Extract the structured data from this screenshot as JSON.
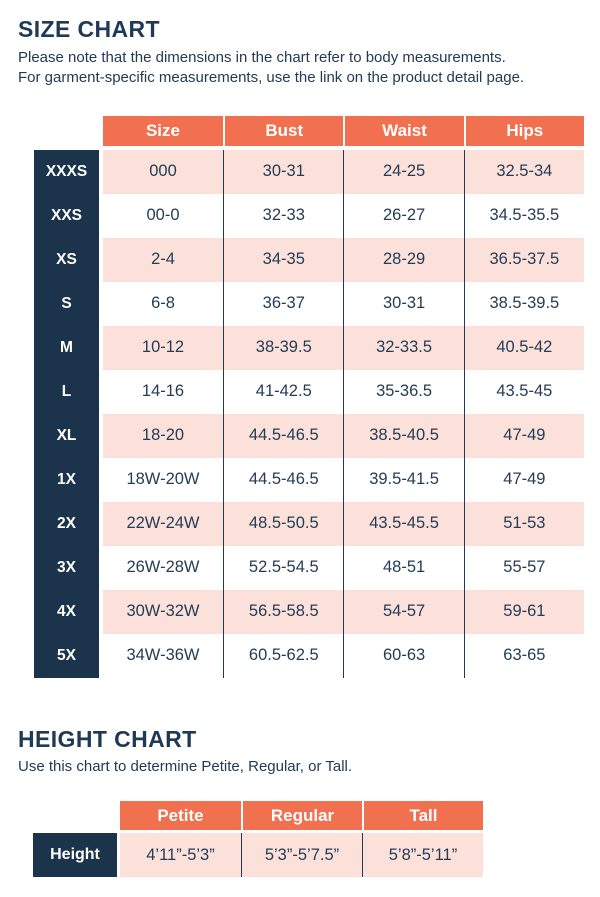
{
  "colors": {
    "navy": "#1b334b",
    "orange": "#f1704f",
    "pink": "#fbe1da",
    "text_navy": "#243c56",
    "background": "#ffffff"
  },
  "size_chart": {
    "title": "SIZE CHART",
    "description_line1": "Please note that the dimensions in the chart refer to body measurements.",
    "description_line2": "For garment-specific measurements, use the link on the product detail page.",
    "columns": [
      "Size",
      "Bust",
      "Waist",
      "Hips"
    ],
    "rows": [
      {
        "label": "XXXS",
        "size": "000",
        "bust": "30-31",
        "waist": "24-25",
        "hips": "32.5-34"
      },
      {
        "label": "XXS",
        "size": "00-0",
        "bust": "32-33",
        "waist": "26-27",
        "hips": "34.5-35.5"
      },
      {
        "label": "XS",
        "size": "2-4",
        "bust": "34-35",
        "waist": "28-29",
        "hips": "36.5-37.5"
      },
      {
        "label": "S",
        "size": "6-8",
        "bust": "36-37",
        "waist": "30-31",
        "hips": "38.5-39.5"
      },
      {
        "label": "M",
        "size": "10-12",
        "bust": "38-39.5",
        "waist": "32-33.5",
        "hips": "40.5-42"
      },
      {
        "label": "L",
        "size": "14-16",
        "bust": "41-42.5",
        "waist": "35-36.5",
        "hips": "43.5-45"
      },
      {
        "label": "XL",
        "size": "18-20",
        "bust": "44.5-46.5",
        "waist": "38.5-40.5",
        "hips": "47-49"
      },
      {
        "label": "1X",
        "size": "18W-20W",
        "bust": "44.5-46.5",
        "waist": "39.5-41.5",
        "hips": "47-49"
      },
      {
        "label": "2X",
        "size": "22W-24W",
        "bust": "48.5-50.5",
        "waist": "43.5-45.5",
        "hips": "51-53"
      },
      {
        "label": "3X",
        "size": "26W-28W",
        "bust": "52.5-54.5",
        "waist": "48-51",
        "hips": "55-57"
      },
      {
        "label": "4X",
        "size": "30W-32W",
        "bust": "56.5-58.5",
        "waist": "54-57",
        "hips": "59-61"
      },
      {
        "label": "5X",
        "size": "34W-36W",
        "bust": "60.5-62.5",
        "waist": "60-63",
        "hips": "63-65"
      }
    ]
  },
  "height_chart": {
    "title": "HEIGHT CHART",
    "description": "Use this chart to determine Petite, Regular, or Tall.",
    "columns": [
      "Petite",
      "Regular",
      "Tall"
    ],
    "row_label": "Height",
    "values": {
      "petite": "4’11”-5’3”",
      "regular": "5’3”-5’7.5”",
      "tall": "5’8”-5’11”"
    }
  }
}
